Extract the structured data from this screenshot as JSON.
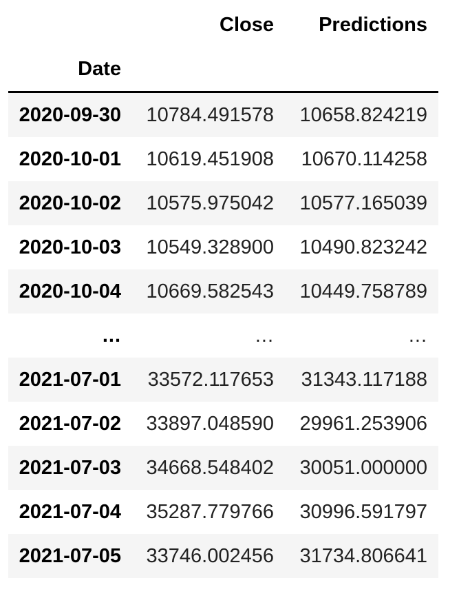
{
  "table": {
    "columns": [
      "Close",
      "Predictions"
    ],
    "index_name": "Date",
    "rows": [
      {
        "date": "2020-09-30",
        "close": "10784.491578",
        "pred": "10658.824219"
      },
      {
        "date": "2020-10-01",
        "close": "10619.451908",
        "pred": "10670.114258"
      },
      {
        "date": "2020-10-02",
        "close": "10575.975042",
        "pred": "10577.165039"
      },
      {
        "date": "2020-10-03",
        "close": "10549.328900",
        "pred": "10490.823242"
      },
      {
        "date": "2020-10-04",
        "close": "10669.582543",
        "pred": "10449.758789"
      },
      {
        "date": "...",
        "close": "...",
        "pred": "..."
      },
      {
        "date": "2021-07-01",
        "close": "33572.117653",
        "pred": "31343.117188"
      },
      {
        "date": "2021-07-02",
        "close": "33897.048590",
        "pred": "29961.253906"
      },
      {
        "date": "2021-07-03",
        "close": "34668.548402",
        "pred": "30051.000000"
      },
      {
        "date": "2021-07-04",
        "close": "35287.779766",
        "pred": "30996.591797"
      },
      {
        "date": "2021-07-05",
        "close": "33746.002456",
        "pred": "31734.806641"
      }
    ]
  }
}
